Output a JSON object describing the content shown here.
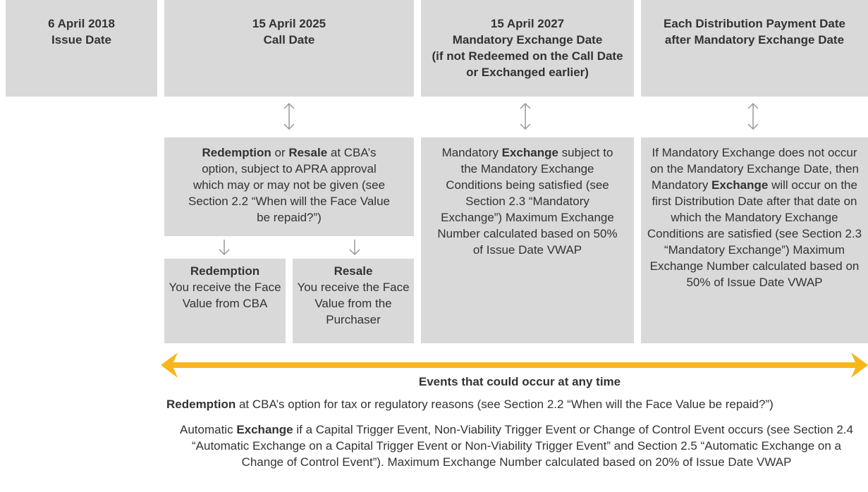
{
  "timeline": [
    {
      "heading": [
        "6 April 2018",
        "Issue Date"
      ]
    },
    {
      "heading": [
        "15 April 2025",
        "Call Date"
      ],
      "body": [
        "Redemption",
        " or ",
        "Resale",
        " at CBA’s option, subject to APRA approval which may or may not be given (see Section 2.2 “When will the Face Value be repaid?”)"
      ],
      "outcomes": [
        {
          "title": "Redemption",
          "text": "You receive the Face Value from CBA"
        },
        {
          "title": "Resale",
          "text": "You receive the Face Value from the Purchaser"
        }
      ]
    },
    {
      "heading": [
        "15 April 2027",
        "Mandatory Exchange Date",
        "(if not Redeemed on the Call Date or Exchanged earlier)"
      ],
      "body": [
        "Mandatory ",
        "Exchange",
        " subject to the Mandatory Exchange Conditions being satisfied (see Section 2.3 “Mandatory Exchange”) Maximum Exchange Number calculated based on 50% of Issue Date VWAP"
      ]
    },
    {
      "heading": [
        "Each Distribution Payment Date after Mandatory Exchange Date"
      ],
      "body": [
        "If Mandatory Exchange does not occur on the Mandatory Exchange Date, then Mandatory ",
        "Exchange",
        " will occur on the first Distribution Date after that date on which the Mandatory Exchange Conditions are satisfied (see Section 2.3 “Mandatory Exchange”) Maximum Exchange Number calculated based on 50% of Issue Date VWAP"
      ]
    }
  ],
  "any_time": {
    "title": "Events that could occur at any time",
    "items": [
      [
        "Redemption",
        " at CBA’s option for tax or regulatory reasons (see Section 2.2 “When will the Face Value be repaid?”)"
      ],
      [
        "Automatic ",
        "Exchange",
        " if a Capital Trigger Event, Non-Viability Trigger Event or Change of Control Event occurs (see Section 2.4 “Automatic Exchange on a Capital Trigger Event or Non-Viability Trigger Event” and Section 2.5 “Automatic Exchange on a Change of Control Event”). Maximum Exchange Number calculated based on 20% of Issue Date VWAP"
      ]
    ]
  }
}
